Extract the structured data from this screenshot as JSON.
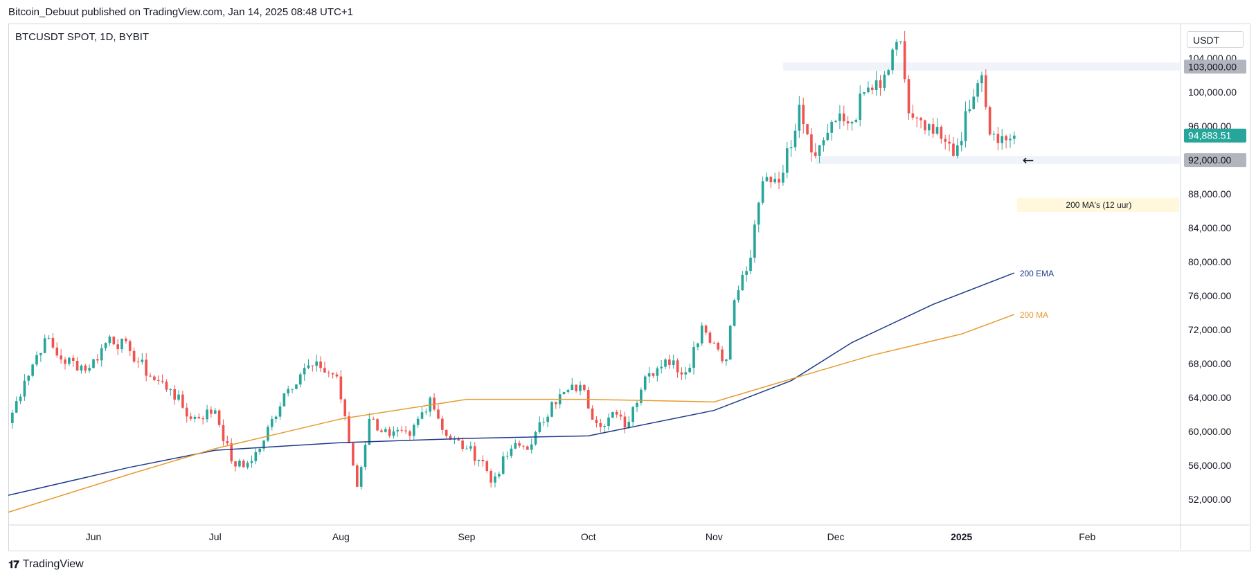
{
  "header": {
    "text": "Bitcoin_Debuut published on TradingView.com, Jan 14, 2025 08:48 UTC+1"
  },
  "symbol": {
    "title": "BTCUSDT SPOT, 1D, BYBIT"
  },
  "axis": {
    "currency": "USDT"
  },
  "footer": {
    "brand": "TradingView"
  },
  "colors": {
    "up": "#26a69a",
    "down": "#ef5350",
    "ema": "#1e3a8a",
    "ma": "#e69b2e",
    "priceTag": "#26a69a",
    "levelTag": "#b2b5be",
    "zone": "#f0f3fa",
    "note": "#fff8dc"
  },
  "chart_data": {
    "type": "candlestick",
    "title": "BTCUSDT SPOT, 1D, BYBIT",
    "y_ticks": [
      "52,000.00",
      "56,000.00",
      "60,000.00",
      "64,000.00",
      "68,000.00",
      "72,000.00",
      "76,000.00",
      "80,000.00",
      "84,000.00",
      "88,000.00",
      "92,000.00",
      "96,000.00",
      "100,000.00",
      "104,000.00"
    ],
    "x_ticks": [
      "Jun",
      "Jul",
      "Aug",
      "Sep",
      "Oct",
      "Nov",
      "Dec",
      "2025",
      "Feb"
    ],
    "ylim": [
      49000,
      108000
    ],
    "xlim": [
      "2024-05-11",
      "2025-02-24"
    ],
    "last_price": {
      "value": 94883.51,
      "label": "94,883.51"
    },
    "levels": [
      {
        "value": 103000,
        "label": "103,000.00"
      },
      {
        "value": 92000,
        "label": "92,000.00"
      }
    ],
    "annotations": {
      "ema_label": "200 EMA",
      "ma_label": "200 MA",
      "note": "200 MA's (12 uur)",
      "arrow": "←"
    },
    "anchors": [
      [
        "2024-05-11",
        61000
      ],
      [
        "2024-05-15",
        66000
      ],
      [
        "2024-05-20",
        71000
      ],
      [
        "2024-05-24",
        68500
      ],
      [
        "2024-05-31",
        67500
      ],
      [
        "2024-06-05",
        71200
      ],
      [
        "2024-06-10",
        69500
      ],
      [
        "2024-06-15",
        66500
      ],
      [
        "2024-06-20",
        65000
      ],
      [
        "2024-06-25",
        61500
      ],
      [
        "2024-07-01",
        62500
      ],
      [
        "2024-07-05",
        56500
      ],
      [
        "2024-07-08",
        55800
      ],
      [
        "2024-07-12",
        58000
      ],
      [
        "2024-07-18",
        64500
      ],
      [
        "2024-07-23",
        67500
      ],
      [
        "2024-07-27",
        67500
      ],
      [
        "2024-07-31",
        66500
      ],
      [
        "2024-08-05",
        53500
      ],
      [
        "2024-08-08",
        61500
      ],
      [
        "2024-08-13",
        59500
      ],
      [
        "2024-08-18",
        59500
      ],
      [
        "2024-08-23",
        64000
      ],
      [
        "2024-08-27",
        59500
      ],
      [
        "2024-09-01",
        58000
      ],
      [
        "2024-09-05",
        56500
      ],
      [
        "2024-09-07",
        54000
      ],
      [
        "2024-09-12",
        58000
      ],
      [
        "2024-09-17",
        58500
      ],
      [
        "2024-09-22",
        63500
      ],
      [
        "2024-09-29",
        65500
      ],
      [
        "2024-10-03",
        61000
      ],
      [
        "2024-10-08",
        62000
      ],
      [
        "2024-10-10",
        60500
      ],
      [
        "2024-10-15",
        66500
      ],
      [
        "2024-10-20",
        68500
      ],
      [
        "2024-10-25",
        67000
      ],
      [
        "2024-10-29",
        72500
      ],
      [
        "2024-11-04",
        68500
      ],
      [
        "2024-11-06",
        75500
      ],
      [
        "2024-11-10",
        80500
      ],
      [
        "2024-11-13",
        89500
      ],
      [
        "2024-11-18",
        90500
      ],
      [
        "2024-11-22",
        98500
      ],
      [
        "2024-11-26",
        92500
      ],
      [
        "2024-11-30",
        96500
      ],
      [
        "2024-12-05",
        96500
      ],
      [
        "2024-12-08",
        100000
      ],
      [
        "2024-12-12",
        100500
      ],
      [
        "2024-12-17",
        106000
      ],
      [
        "2024-12-19",
        97500
      ],
      [
        "2024-12-23",
        95500
      ],
      [
        "2024-12-27",
        94500
      ],
      [
        "2024-12-30",
        92500
      ],
      [
        "2025-01-03",
        98000
      ],
      [
        "2025-01-06",
        102000
      ],
      [
        "2025-01-08",
        95000
      ],
      [
        "2025-01-10",
        94000
      ],
      [
        "2025-01-13",
        94500
      ],
      [
        "2025-01-14",
        94883.51
      ]
    ],
    "series": [
      {
        "name": "200 EMA",
        "points": [
          [
            "2024-05-11",
            52500
          ],
          [
            "2024-06-10",
            55800
          ],
          [
            "2024-07-01",
            57800
          ],
          [
            "2024-08-01",
            58700
          ],
          [
            "2024-09-01",
            59200
          ],
          [
            "2024-10-01",
            59500
          ],
          [
            "2024-11-01",
            62500
          ],
          [
            "2024-11-20",
            66000
          ],
          [
            "2024-12-05",
            70500
          ],
          [
            "2024-12-25",
            75000
          ],
          [
            "2025-01-14",
            78700
          ]
        ]
      },
      {
        "name": "200 MA",
        "points": [
          [
            "2024-05-11",
            50500
          ],
          [
            "2024-06-10",
            55000
          ],
          [
            "2024-07-01",
            58000
          ],
          [
            "2024-08-01",
            61500
          ],
          [
            "2024-09-01",
            63800
          ],
          [
            "2024-10-01",
            63800
          ],
          [
            "2024-11-01",
            63500
          ],
          [
            "2024-11-20",
            66200
          ],
          [
            "2024-12-10",
            69000
          ],
          [
            "2025-01-01",
            71500
          ],
          [
            "2025-01-14",
            73800
          ]
        ]
      }
    ]
  }
}
